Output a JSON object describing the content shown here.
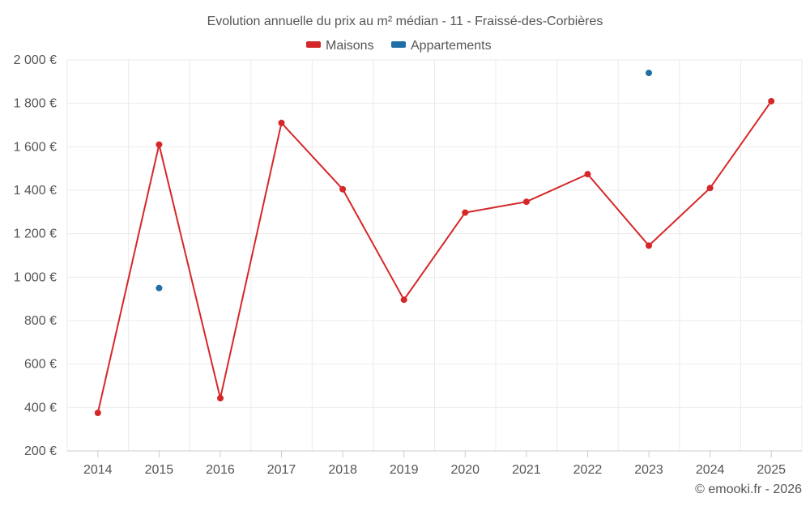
{
  "chart_data": {
    "type": "line",
    "title": "Evolution annuelle du prix au m² médian - 11 - Fraissé-des-Corbières",
    "categories": [
      "2014",
      "2015",
      "2016",
      "2017",
      "2018",
      "2019",
      "2020",
      "2021",
      "2022",
      "2023",
      "2024",
      "2025"
    ],
    "series": [
      {
        "name": "Maisons",
        "color": "#d62728",
        "values": [
          375,
          1610,
          443,
          1710,
          1405,
          896,
          1297,
          1347,
          1474,
          1145,
          1410,
          1810
        ]
      },
      {
        "name": "Appartements",
        "color": "#1f6fa6",
        "values": [
          null,
          950,
          null,
          null,
          null,
          null,
          null,
          null,
          null,
          1940,
          null,
          null
        ]
      }
    ],
    "xlabel": "",
    "ylabel": "",
    "ylim": [
      200,
      2000
    ],
    "yticks": [
      200,
      400,
      600,
      800,
      1000,
      1200,
      1400,
      1600,
      1800,
      2000
    ],
    "ytick_labels": [
      "200 €",
      "400 €",
      "600 €",
      "800 €",
      "1 000 €",
      "1 200 €",
      "1 400 €",
      "1 600 €",
      "1 800 €",
      "2 000 €"
    ],
    "grid": true,
    "legend_position": "top-center"
  },
  "credit": "© emooki.fr - 2026"
}
